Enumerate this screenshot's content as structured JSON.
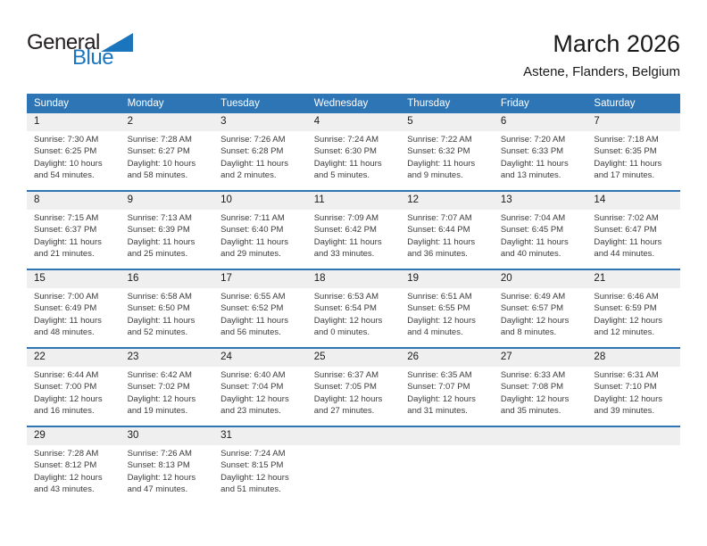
{
  "logo": {
    "general": "General",
    "blue": "Blue"
  },
  "header": {
    "title": "March 2026",
    "subtitle": "Astene, Flanders, Belgium"
  },
  "colors": {
    "header_blue": "#2E75B6",
    "band_gray": "#EFEFEF",
    "logo_blue": "#1B75BC"
  },
  "weekdays": [
    "Sunday",
    "Monday",
    "Tuesday",
    "Wednesday",
    "Thursday",
    "Friday",
    "Saturday"
  ],
  "weeks": [
    [
      {
        "day": "1",
        "sunrise": "Sunrise: 7:30 AM",
        "sunset": "Sunset: 6:25 PM",
        "daylight": "Daylight: 10 hours and 54 minutes."
      },
      {
        "day": "2",
        "sunrise": "Sunrise: 7:28 AM",
        "sunset": "Sunset: 6:27 PM",
        "daylight": "Daylight: 10 hours and 58 minutes."
      },
      {
        "day": "3",
        "sunrise": "Sunrise: 7:26 AM",
        "sunset": "Sunset: 6:28 PM",
        "daylight": "Daylight: 11 hours and 2 minutes."
      },
      {
        "day": "4",
        "sunrise": "Sunrise: 7:24 AM",
        "sunset": "Sunset: 6:30 PM",
        "daylight": "Daylight: 11 hours and 5 minutes."
      },
      {
        "day": "5",
        "sunrise": "Sunrise: 7:22 AM",
        "sunset": "Sunset: 6:32 PM",
        "daylight": "Daylight: 11 hours and 9 minutes."
      },
      {
        "day": "6",
        "sunrise": "Sunrise: 7:20 AM",
        "sunset": "Sunset: 6:33 PM",
        "daylight": "Daylight: 11 hours and 13 minutes."
      },
      {
        "day": "7",
        "sunrise": "Sunrise: 7:18 AM",
        "sunset": "Sunset: 6:35 PM",
        "daylight": "Daylight: 11 hours and 17 minutes."
      }
    ],
    [
      {
        "day": "8",
        "sunrise": "Sunrise: 7:15 AM",
        "sunset": "Sunset: 6:37 PM",
        "daylight": "Daylight: 11 hours and 21 minutes."
      },
      {
        "day": "9",
        "sunrise": "Sunrise: 7:13 AM",
        "sunset": "Sunset: 6:39 PM",
        "daylight": "Daylight: 11 hours and 25 minutes."
      },
      {
        "day": "10",
        "sunrise": "Sunrise: 7:11 AM",
        "sunset": "Sunset: 6:40 PM",
        "daylight": "Daylight: 11 hours and 29 minutes."
      },
      {
        "day": "11",
        "sunrise": "Sunrise: 7:09 AM",
        "sunset": "Sunset: 6:42 PM",
        "daylight": "Daylight: 11 hours and 33 minutes."
      },
      {
        "day": "12",
        "sunrise": "Sunrise: 7:07 AM",
        "sunset": "Sunset: 6:44 PM",
        "daylight": "Daylight: 11 hours and 36 minutes."
      },
      {
        "day": "13",
        "sunrise": "Sunrise: 7:04 AM",
        "sunset": "Sunset: 6:45 PM",
        "daylight": "Daylight: 11 hours and 40 minutes."
      },
      {
        "day": "14",
        "sunrise": "Sunrise: 7:02 AM",
        "sunset": "Sunset: 6:47 PM",
        "daylight": "Daylight: 11 hours and 44 minutes."
      }
    ],
    [
      {
        "day": "15",
        "sunrise": "Sunrise: 7:00 AM",
        "sunset": "Sunset: 6:49 PM",
        "daylight": "Daylight: 11 hours and 48 minutes."
      },
      {
        "day": "16",
        "sunrise": "Sunrise: 6:58 AM",
        "sunset": "Sunset: 6:50 PM",
        "daylight": "Daylight: 11 hours and 52 minutes."
      },
      {
        "day": "17",
        "sunrise": "Sunrise: 6:55 AM",
        "sunset": "Sunset: 6:52 PM",
        "daylight": "Daylight: 11 hours and 56 minutes."
      },
      {
        "day": "18",
        "sunrise": "Sunrise: 6:53 AM",
        "sunset": "Sunset: 6:54 PM",
        "daylight": "Daylight: 12 hours and 0 minutes."
      },
      {
        "day": "19",
        "sunrise": "Sunrise: 6:51 AM",
        "sunset": "Sunset: 6:55 PM",
        "daylight": "Daylight: 12 hours and 4 minutes."
      },
      {
        "day": "20",
        "sunrise": "Sunrise: 6:49 AM",
        "sunset": "Sunset: 6:57 PM",
        "daylight": "Daylight: 12 hours and 8 minutes."
      },
      {
        "day": "21",
        "sunrise": "Sunrise: 6:46 AM",
        "sunset": "Sunset: 6:59 PM",
        "daylight": "Daylight: 12 hours and 12 minutes."
      }
    ],
    [
      {
        "day": "22",
        "sunrise": "Sunrise: 6:44 AM",
        "sunset": "Sunset: 7:00 PM",
        "daylight": "Daylight: 12 hours and 16 minutes."
      },
      {
        "day": "23",
        "sunrise": "Sunrise: 6:42 AM",
        "sunset": "Sunset: 7:02 PM",
        "daylight": "Daylight: 12 hours and 19 minutes."
      },
      {
        "day": "24",
        "sunrise": "Sunrise: 6:40 AM",
        "sunset": "Sunset: 7:04 PM",
        "daylight": "Daylight: 12 hours and 23 minutes."
      },
      {
        "day": "25",
        "sunrise": "Sunrise: 6:37 AM",
        "sunset": "Sunset: 7:05 PM",
        "daylight": "Daylight: 12 hours and 27 minutes."
      },
      {
        "day": "26",
        "sunrise": "Sunrise: 6:35 AM",
        "sunset": "Sunset: 7:07 PM",
        "daylight": "Daylight: 12 hours and 31 minutes."
      },
      {
        "day": "27",
        "sunrise": "Sunrise: 6:33 AM",
        "sunset": "Sunset: 7:08 PM",
        "daylight": "Daylight: 12 hours and 35 minutes."
      },
      {
        "day": "28",
        "sunrise": "Sunrise: 6:31 AM",
        "sunset": "Sunset: 7:10 PM",
        "daylight": "Daylight: 12 hours and 39 minutes."
      }
    ],
    [
      {
        "day": "29",
        "sunrise": "Sunrise: 7:28 AM",
        "sunset": "Sunset: 8:12 PM",
        "daylight": "Daylight: 12 hours and 43 minutes."
      },
      {
        "day": "30",
        "sunrise": "Sunrise: 7:26 AM",
        "sunset": "Sunset: 8:13 PM",
        "daylight": "Daylight: 12 hours and 47 minutes."
      },
      {
        "day": "31",
        "sunrise": "Sunrise: 7:24 AM",
        "sunset": "Sunset: 8:15 PM",
        "daylight": "Daylight: 12 hours and 51 minutes."
      },
      null,
      null,
      null,
      null
    ]
  ]
}
